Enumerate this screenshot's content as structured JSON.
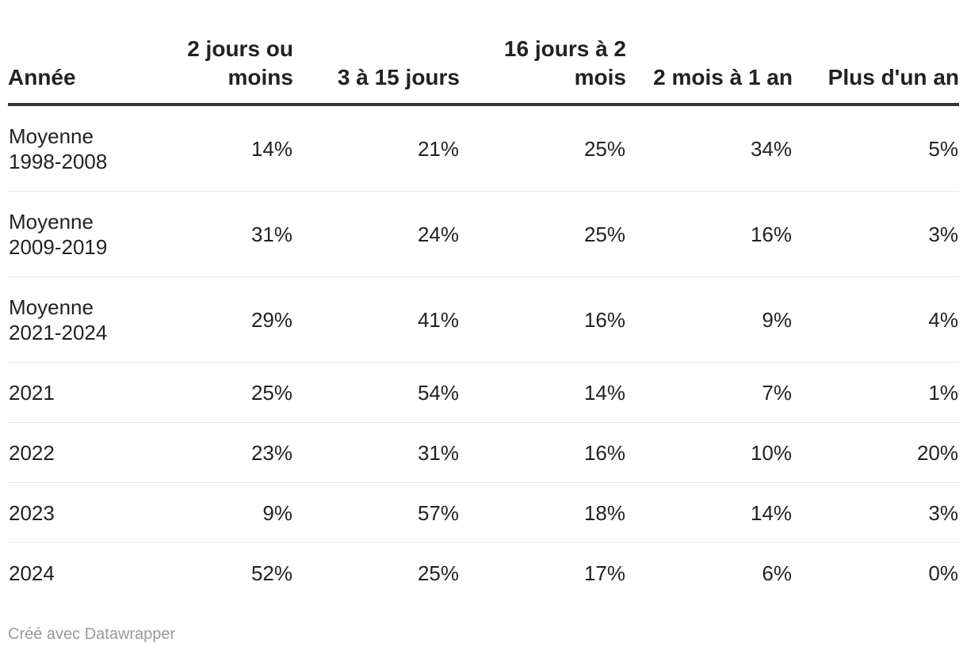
{
  "chart_data": {
    "type": "table",
    "columns": [
      "Année",
      "2 jours ou moins",
      "3 à 15 jours",
      "16 jours à 2 mois",
      "2 mois à 1 an",
      "Plus d'un an"
    ],
    "rows": [
      {
        "label": "Moyenne 1998-2008",
        "values": [
          "14%",
          "21%",
          "25%",
          "34%",
          "5%"
        ]
      },
      {
        "label": "Moyenne 2009-2019",
        "values": [
          "31%",
          "24%",
          "25%",
          "16%",
          "3%"
        ]
      },
      {
        "label": "Moyenne 2021-2024",
        "values": [
          "29%",
          "41%",
          "16%",
          "9%",
          "4%"
        ]
      },
      {
        "label": "2021",
        "values": [
          "25%",
          "54%",
          "14%",
          "7%",
          "1%"
        ]
      },
      {
        "label": "2022",
        "values": [
          "23%",
          "31%",
          "16%",
          "10%",
          "20%"
        ]
      },
      {
        "label": "2023",
        "values": [
          "9%",
          "57%",
          "18%",
          "14%",
          "3%"
        ]
      },
      {
        "label": "2024",
        "values": [
          "52%",
          "25%",
          "17%",
          "6%",
          "0%"
        ]
      }
    ]
  },
  "footer": {
    "credit": "Créé avec Datawrapper"
  },
  "colors": {
    "text": "#222222",
    "header_rule": "#333333",
    "row_divider": "#e6e6e6",
    "footer_text": "#999999"
  }
}
